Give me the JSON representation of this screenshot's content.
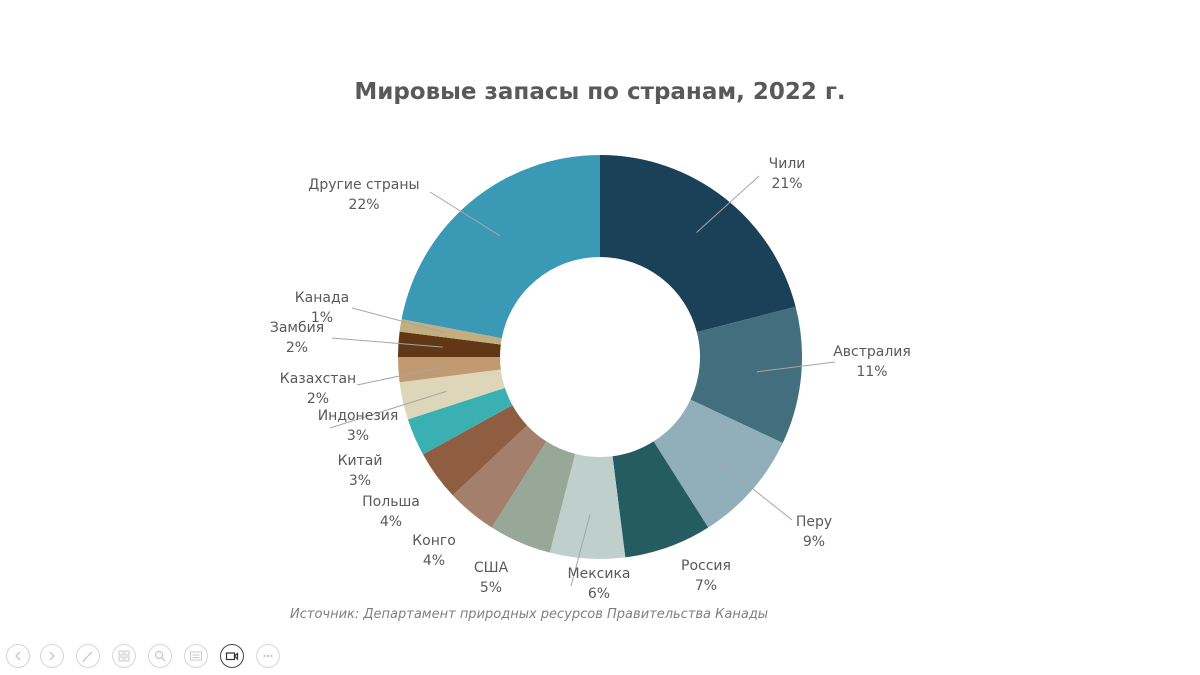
{
  "chart_data": {
    "type": "pie",
    "title": "Мировые запасы по странам, 2022 г.",
    "slices": [
      {
        "name": "Чили",
        "value": 21,
        "label": "21%",
        "color": "#1a4157"
      },
      {
        "name": "Австралия",
        "value": 11,
        "label": "11%",
        "color": "#426e7e"
      },
      {
        "name": "Перу",
        "value": 9,
        "label": "9%",
        "color": "#90afbb"
      },
      {
        "name": "Россия",
        "value": 7,
        "label": "7%",
        "color": "#245c61"
      },
      {
        "name": "Мексика",
        "value": 6,
        "label": "6%",
        "color": "#bfcfcc"
      },
      {
        "name": "США",
        "value": 5,
        "label": "5%",
        "color": "#98a898"
      },
      {
        "name": "Конго",
        "value": 4,
        "label": "4%",
        "color": "#a4806c"
      },
      {
        "name": "Польша",
        "value": 4,
        "label": "4%",
        "color": "#8f5d42"
      },
      {
        "name": "Китай",
        "value": 3,
        "label": "3%",
        "color": "#3bb0b2"
      },
      {
        "name": "Индонезия",
        "value": 3,
        "label": "3%",
        "color": "#ddd6b8"
      },
      {
        "name": "Казахстан",
        "value": 2,
        "label": "2%",
        "color": "#c19a72"
      },
      {
        "name": "Замбия",
        "value": 2,
        "label": "2%",
        "color": "#613716"
      },
      {
        "name": "Канада",
        "value": 1,
        "label": "1%",
        "color": "#c2ae7f"
      },
      {
        "name": "Другие страны",
        "value": 22,
        "label": "22%",
        "color": "#3a9ab5"
      }
    ],
    "style": "donut"
  },
  "source": "Источник: Департамент природных ресурсов Правительства Канады",
  "toolbar": {
    "buttons": [
      {
        "name": "prev-button",
        "icon": "arrow-left-icon"
      },
      {
        "name": "next-button",
        "icon": "arrow-right-icon"
      },
      {
        "name": "pen-button",
        "icon": "pen-icon"
      },
      {
        "name": "slides-button",
        "icon": "slides-icon"
      },
      {
        "name": "zoom-button",
        "icon": "zoom-icon"
      },
      {
        "name": "subtitles-button",
        "icon": "subtitles-icon"
      },
      {
        "name": "camera-button",
        "icon": "camera-icon"
      },
      {
        "name": "more-button",
        "icon": "more-icon"
      }
    ]
  }
}
